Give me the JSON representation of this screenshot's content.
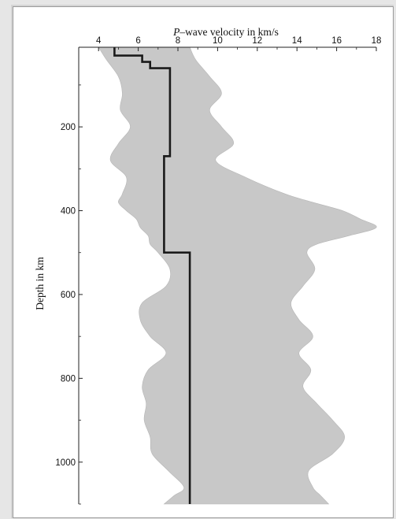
{
  "chart_data": {
    "type": "area",
    "title": "",
    "xlabel_prefix": "P",
    "xlabel_rest": "–wave velocity in km/s",
    "ylabel": "Depth in km",
    "x_axis_position": "top",
    "y_axis_inverted": true,
    "xlim": [
      3,
      18
    ],
    "ylim": [
      10,
      1100
    ],
    "x_ticks": [
      4,
      6,
      8,
      10,
      12,
      14,
      16,
      18
    ],
    "y_ticks": [
      200,
      400,
      600,
      800,
      1000
    ],
    "grid": false,
    "colors": {
      "band": "#c8c8c8",
      "line": "#1a1a1a",
      "axis": "#222222"
    },
    "band": {
      "depth": [
        10,
        40,
        80,
        120,
        160,
        200,
        240,
        280,
        320,
        360,
        380,
        400,
        420,
        440,
        460,
        480,
        500,
        540,
        580,
        620,
        660,
        700,
        740,
        780,
        820,
        860,
        900,
        940,
        980,
        1020,
        1060,
        1080,
        1100
      ],
      "lower": [
        4.0,
        4.4,
        5.0,
        5.2,
        5.1,
        5.6,
        5.0,
        4.6,
        5.4,
        5.2,
        5.0,
        5.4,
        5.9,
        6.1,
        6.5,
        6.6,
        7.0,
        7.6,
        7.4,
        6.2,
        6.1,
        6.6,
        7.4,
        6.5,
        6.2,
        6.4,
        6.3,
        6.6,
        6.7,
        7.5,
        8.3,
        7.8,
        7.3
      ],
      "upper": [
        8.6,
        8.9,
        9.6,
        10.2,
        9.6,
        10.2,
        10.8,
        9.9,
        11.4,
        13.4,
        14.8,
        16.3,
        17.2,
        18.0,
        16.6,
        15.0,
        14.5,
        14.9,
        14.3,
        13.7,
        14.1,
        14.8,
        14.1,
        14.7,
        14.3,
        15.0,
        15.8,
        16.4,
        15.8,
        14.6,
        14.8,
        15.2,
        15.6
      ]
    },
    "series": [
      {
        "points": [
          [
            4.8,
            10
          ],
          [
            4.8,
            30
          ],
          [
            6.2,
            30
          ],
          [
            6.2,
            45
          ],
          [
            6.6,
            45
          ],
          [
            6.6,
            60
          ],
          [
            7.6,
            60
          ],
          [
            7.6,
            270
          ],
          [
            7.3,
            270
          ],
          [
            7.3,
            500
          ],
          [
            8.6,
            500
          ],
          [
            8.6,
            1100
          ]
        ]
      }
    ]
  }
}
